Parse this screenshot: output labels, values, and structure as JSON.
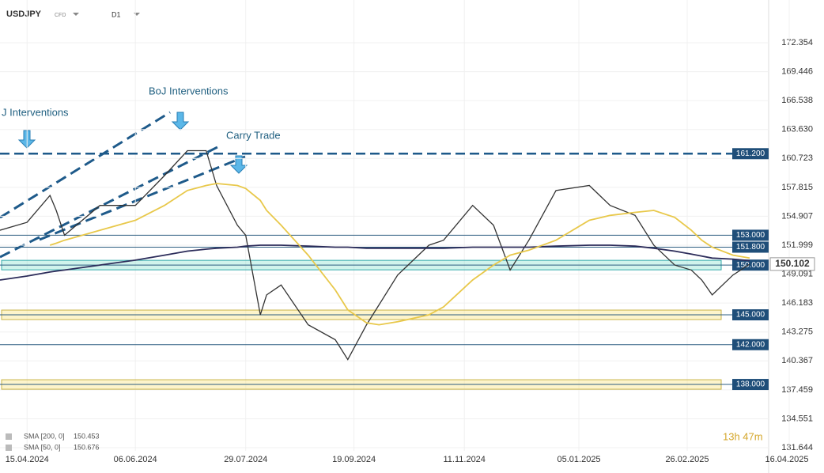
{
  "header": {
    "symbol": "USDJPY",
    "kind": "CFD",
    "timeframe": "D1",
    "countdown": "13h 47m"
  },
  "chart_data": {
    "type": "line",
    "x": [
      "02.04.2024",
      "15.04.2024",
      "26.04.2024",
      "29.04.2024",
      "03.05.2024",
      "20.05.2024",
      "06.06.2024",
      "20.06.2024",
      "01.07.2024",
      "10.07.2024",
      "15.07.2024",
      "25.07.2024",
      "29.07.2024",
      "05.08.2024",
      "08.08.2024",
      "15.08.2024",
      "28.08.2024",
      "10.09.2024",
      "16.09.2024",
      "25.09.2024",
      "01.10.2024",
      "10.10.2024",
      "25.10.2024",
      "01.11.2024",
      "15.11.2024",
      "25.11.2024",
      "03.12.2024",
      "12.12.2024",
      "25.12.2024",
      "10.01.2025",
      "20.01.2025",
      "01.02.2025",
      "10.02.2025",
      "20.02.2025",
      "28.02.2025",
      "05.03.2025",
      "10.03.2025",
      "20.03.2025",
      "28.03.2025"
    ],
    "series": [
      {
        "name": "USDJPY",
        "color": "#333333",
        "values": [
          153.5,
          154.3,
          157,
          155.5,
          153,
          156,
          156,
          159,
          161.5,
          161.5,
          158,
          154,
          153,
          145,
          147,
          148,
          144,
          142.5,
          140.5,
          144,
          146,
          149,
          152,
          152.5,
          156,
          154,
          149.5,
          152.5,
          157.5,
          158,
          156,
          155,
          152,
          150,
          149.5,
          148.5,
          147,
          149,
          150.1
        ]
      },
      {
        "name": "SMA [200, 0]",
        "last": 150.453,
        "color": "#2c2c5a",
        "values": [
          148.5,
          148.9,
          149.3,
          149.4,
          149.5,
          150,
          150.5,
          151,
          151.4,
          151.6,
          151.7,
          151.8,
          151.9,
          152,
          152,
          152,
          151.9,
          151.8,
          151.8,
          151.7,
          151.7,
          151.7,
          151.7,
          151.7,
          151.8,
          151.8,
          151.8,
          151.8,
          151.9,
          152,
          152,
          151.9,
          151.7,
          151.4,
          151.1,
          150.9,
          150.7,
          150.6,
          150.45
        ]
      },
      {
        "name": "SMA [50, 0]",
        "last": 150.676,
        "color": "#e8c84a",
        "values": [
          null,
          null,
          152,
          152.2,
          152.5,
          153.5,
          154.5,
          156,
          157.5,
          158,
          158.2,
          158,
          157.7,
          156.5,
          155.5,
          154,
          151,
          147.5,
          145.5,
          144.2,
          144,
          144.3,
          145,
          145.8,
          148.5,
          150,
          151,
          151.5,
          152.5,
          154.5,
          155,
          155.3,
          155.5,
          154.8,
          153.5,
          152.5,
          151.8,
          151,
          150.7
        ]
      }
    ],
    "levels": [
      {
        "value": 161.2,
        "label": "161.200",
        "zone": false
      },
      {
        "value": 153,
        "label": "153.000",
        "zone": false
      },
      {
        "value": 151.8,
        "label": "151.800",
        "zone": false
      },
      {
        "value": 150,
        "label": "150.000",
        "zone": true
      },
      {
        "value": 145,
        "label": "145.000",
        "zone": true
      },
      {
        "value": 142,
        "label": "142.000",
        "zone": false
      },
      {
        "value": 138,
        "label": "138.000",
        "zone": true
      }
    ],
    "current_price": {
      "value": 150.102,
      "label": "150.102"
    },
    "annotations": [
      "J Interventions",
      "BoJ Interventions",
      "Carry Trade"
    ],
    "xlim": [
      "02.04.2024",
      "16.04.2025"
    ],
    "xticks": [
      "15.04.2024",
      "06.06.2024",
      "29.07.2024",
      "19.09.2024",
      "11.11.2024",
      "05.01.2025",
      "26.02.2025",
      "16.04.2025"
    ],
    "ylim": [
      131.644,
      172.354
    ],
    "yticks": [
      {
        "value": 172.354,
        "label": "172.354"
      },
      {
        "value": 169.446,
        "label": "169.446"
      },
      {
        "value": 166.538,
        "label": "166.538"
      },
      {
        "value": 163.63,
        "label": "163.630"
      },
      {
        "value": 160.723,
        "label": "160.723"
      },
      {
        "value": 157.815,
        "label": "157.815"
      },
      {
        "value": 154.907,
        "label": "154.907"
      },
      {
        "value": 151.999,
        "label": "151.999"
      },
      {
        "value": 149.091,
        "label": "149.091"
      },
      {
        "value": 146.183,
        "label": "146.183"
      },
      {
        "value": 143.275,
        "label": "143.275"
      },
      {
        "value": 140.367,
        "label": "140.367"
      },
      {
        "value": 137.459,
        "label": "137.459"
      },
      {
        "value": 134.551,
        "label": "134.551"
      },
      {
        "value": 131.644,
        "label": "131.644"
      }
    ],
    "grid": true
  }
}
